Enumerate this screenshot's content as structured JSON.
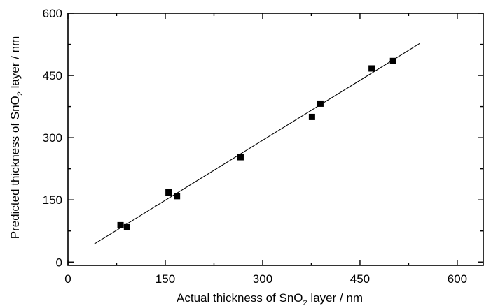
{
  "chart_data": {
    "type": "scatter",
    "title": "",
    "xlabel": {
      "pre": "Actual thickness of SnO",
      "sub": "2",
      "post": " layer / nm"
    },
    "ylabel": {
      "pre": "Predicted thickness of SnO",
      "sub": "2",
      "post": " layer / nm"
    },
    "xlim": [
      0,
      640
    ],
    "ylim": [
      -8,
      600
    ],
    "xticks": [
      0,
      150,
      300,
      450,
      600
    ],
    "yticks": [
      0,
      150,
      300,
      450,
      600
    ],
    "grid": false,
    "legend": "none",
    "points": [
      {
        "x": 81,
        "y": 89
      },
      {
        "x": 91,
        "y": 84
      },
      {
        "x": 155,
        "y": 168
      },
      {
        "x": 168,
        "y": 159
      },
      {
        "x": 266,
        "y": 253
      },
      {
        "x": 376,
        "y": 350
      },
      {
        "x": 389,
        "y": 382
      },
      {
        "x": 468,
        "y": 467
      },
      {
        "x": 501,
        "y": 485
      }
    ],
    "fit_line": {
      "x": [
        40,
        542
      ],
      "y": [
        43,
        527
      ]
    }
  }
}
